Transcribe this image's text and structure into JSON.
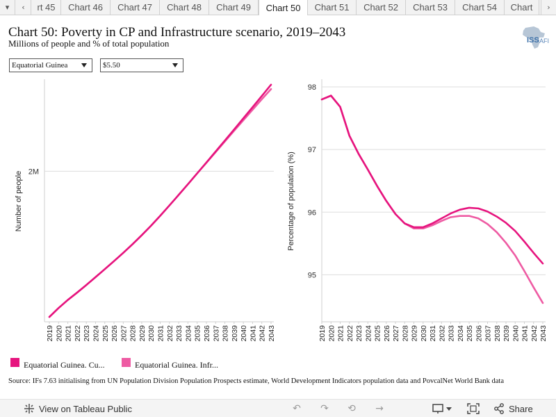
{
  "tabs": {
    "items": [
      {
        "label": "rt 45",
        "active": false
      },
      {
        "label": "Chart 46",
        "active": false
      },
      {
        "label": "Chart 47",
        "active": false
      },
      {
        "label": "Chart 48",
        "active": false
      },
      {
        "label": "Chart 49",
        "active": false
      },
      {
        "label": "Chart 50",
        "active": true
      },
      {
        "label": "Chart 51",
        "active": false
      },
      {
        "label": "Chart 52",
        "active": false
      },
      {
        "label": "Chart 53",
        "active": false
      },
      {
        "label": "Chart 54",
        "active": false
      },
      {
        "label": "Chart",
        "active": false
      }
    ],
    "menu_icon": "caret-down-icon",
    "prev_icon": "chevron-left-icon",
    "next_icon": "chevron-right-icon"
  },
  "header": {
    "title": "Chart 50: Poverty in CP and Infrastructure scenario, 2019–2043",
    "subtitle": "Millions of people and % of total population",
    "logo_text": "ISS",
    "logo_suffix": "AFI"
  },
  "filters": {
    "country": "Equatorial Guinea",
    "threshold": "$5.50"
  },
  "colors": {
    "current_path": "#e6147e",
    "infrastructure": "#ee5ba3",
    "grid": "#d9d9d9",
    "axis": "#aaaaaa"
  },
  "chart_data": [
    {
      "type": "line",
      "title": "",
      "xlabel": "",
      "ylabel": "Number of people",
      "x": [
        2019,
        2020,
        2021,
        2022,
        2023,
        2024,
        2025,
        2026,
        2027,
        2028,
        2029,
        2030,
        2031,
        2032,
        2033,
        2034,
        2035,
        2036,
        2037,
        2038,
        2039,
        2040,
        2041,
        2042,
        2043
      ],
      "yticks": [
        {
          "value": 2000000,
          "label": "2M"
        }
      ],
      "ylim": [
        1070000,
        2560000
      ],
      "grid": true,
      "series": [
        {
          "name": "Equatorial Guinea. Current Path",
          "color": "#e6147e",
          "values": [
            1100000,
            1155000,
            1205000,
            1250000,
            1297000,
            1346000,
            1395000,
            1445000,
            1496000,
            1549000,
            1605000,
            1663000,
            1725000,
            1789000,
            1854000,
            1920000,
            1987000,
            2054000,
            2122000,
            2190000,
            2258000,
            2327000,
            2396000,
            2465000,
            2535000
          ]
        },
        {
          "name": "Equatorial Guinea. Infrastructure",
          "color": "#ee5ba3",
          "values": [
            1100000,
            1155000,
            1205000,
            1250000,
            1297000,
            1346000,
            1395000,
            1445000,
            1496000,
            1549000,
            1605000,
            1663000,
            1725000,
            1789000,
            1854000,
            1920000,
            1987000,
            2052000,
            2118000,
            2184000,
            2250000,
            2315000,
            2380000,
            2445000,
            2508000
          ]
        }
      ]
    },
    {
      "type": "line",
      "title": "",
      "xlabel": "",
      "ylabel": "Percentage of population (%)",
      "x": [
        2019,
        2020,
        2021,
        2022,
        2023,
        2024,
        2025,
        2026,
        2027,
        2028,
        2029,
        2030,
        2031,
        2032,
        2033,
        2034,
        2035,
        2036,
        2037,
        2038,
        2039,
        2040,
        2041,
        2042,
        2043
      ],
      "yticks": [
        {
          "value": 95,
          "label": "95"
        },
        {
          "value": 96,
          "label": "96"
        },
        {
          "value": 97,
          "label": "97"
        },
        {
          "value": 98,
          "label": "98"
        }
      ],
      "ylim": [
        94.25,
        98.1
      ],
      "grid": true,
      "series": [
        {
          "name": "Equatorial Guinea. Current Path",
          "color": "#e6147e",
          "values": [
            97.8,
            97.86,
            97.68,
            97.22,
            96.93,
            96.68,
            96.42,
            96.18,
            95.97,
            95.82,
            95.76,
            95.76,
            95.82,
            95.9,
            95.98,
            96.04,
            96.07,
            96.06,
            96.01,
            95.93,
            95.83,
            95.7,
            95.53,
            95.35,
            95.18
          ]
        },
        {
          "name": "Equatorial Guinea. Infrastructure",
          "color": "#ee5ba3",
          "values": [
            97.8,
            97.86,
            97.68,
            97.22,
            96.93,
            96.68,
            96.42,
            96.18,
            95.97,
            95.82,
            95.74,
            95.74,
            95.79,
            95.86,
            95.92,
            95.94,
            95.94,
            95.9,
            95.81,
            95.68,
            95.51,
            95.31,
            95.06,
            94.8,
            94.55
          ]
        }
      ]
    }
  ],
  "legend": {
    "items": [
      {
        "label": "Equatorial Guinea. Cu...",
        "color": "#e6147e"
      },
      {
        "label": "Equatorial Guinea. Infr...",
        "color": "#ee5ba3"
      }
    ]
  },
  "source": "Source: IFs 7.63 initialising from UN Population Division Population Prospects estimate, World Development Indicators population data and PovcalNet World Bank data",
  "footer": {
    "view_label": "View on Tableau Public",
    "share_label": "Share",
    "icons": [
      "undo-icon",
      "redo-icon",
      "revert-icon",
      "forward-icon",
      "download-icon",
      "fullscreen-icon",
      "share-icon"
    ]
  }
}
